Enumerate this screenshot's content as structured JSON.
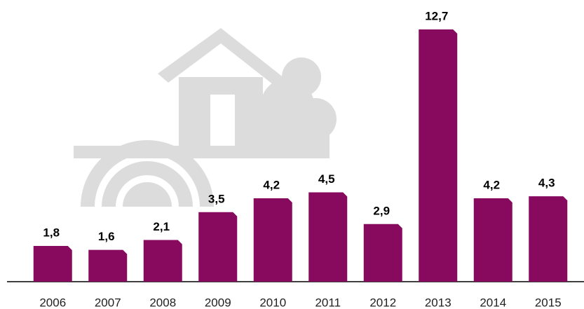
{
  "chart_data": {
    "type": "bar",
    "categories": [
      "2006",
      "2007",
      "2008",
      "2009",
      "2010",
      "2011",
      "2012",
      "2013",
      "2014",
      "2015"
    ],
    "values": [
      1.8,
      1.6,
      2.1,
      3.5,
      4.2,
      4.5,
      2.9,
      12.7,
      4.2,
      4.3
    ],
    "value_labels": [
      "1,8",
      "1,6",
      "2,1",
      "3,5",
      "4,2",
      "4,5",
      "2,9",
      "12,7",
      "4,2",
      "4,3"
    ],
    "color": "#870a5f"
  }
}
